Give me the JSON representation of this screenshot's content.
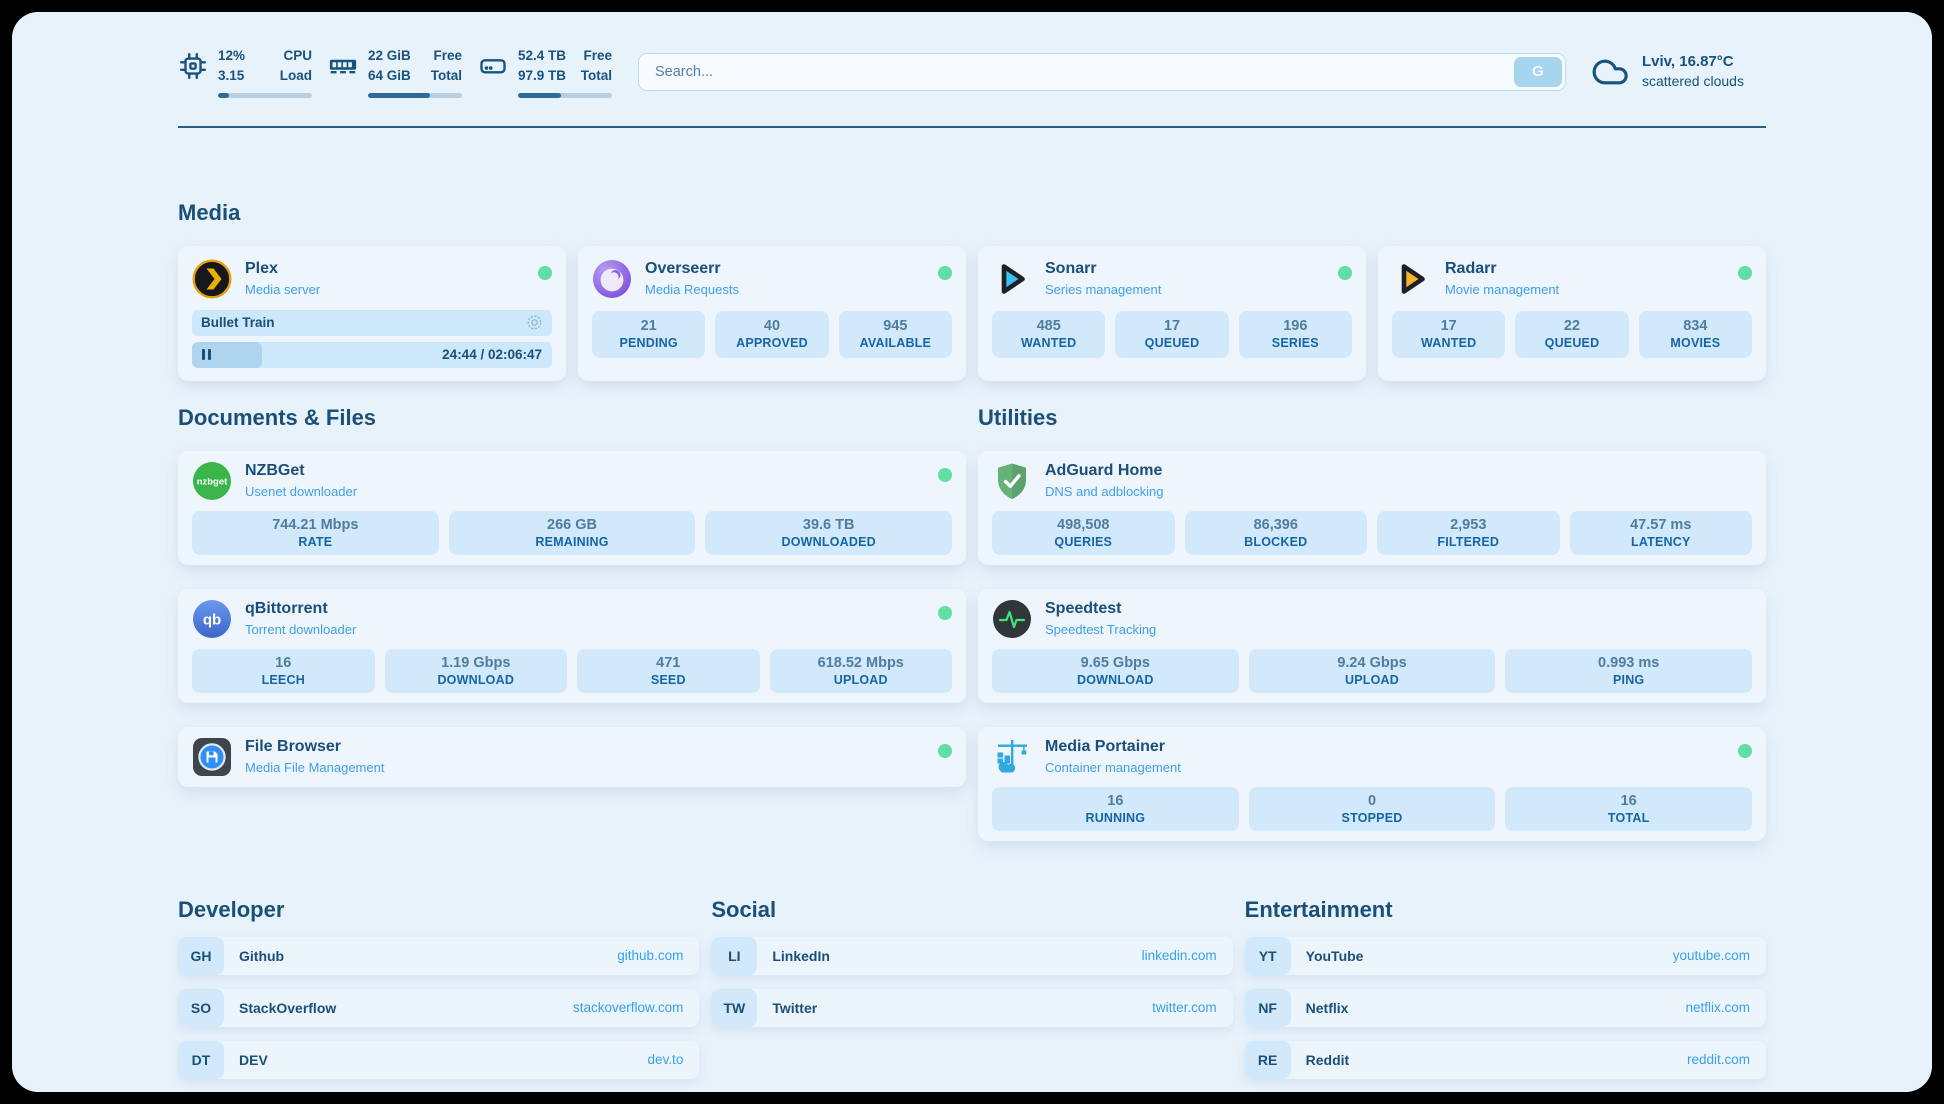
{
  "header": {
    "system_stats": [
      {
        "icon": "cpu-icon",
        "values": [
          "12%",
          "3.15"
        ],
        "labels": [
          "CPU",
          "Load"
        ],
        "progress_pct": 12
      },
      {
        "icon": "memory-icon",
        "values": [
          "22 GiB",
          "64 GiB"
        ],
        "labels": [
          "Free",
          "Total"
        ],
        "progress_pct": 66
      },
      {
        "icon": "storage-icon",
        "values": [
          "52.4 TB",
          "97.9 TB"
        ],
        "labels": [
          "Free",
          "Total"
        ],
        "progress_pct": 46
      }
    ],
    "search": {
      "placeholder": "Search...",
      "button_label": "G"
    },
    "weather": {
      "location_temperature": "Lviv, 16.87°C",
      "condition": "scattered clouds"
    }
  },
  "sections": {
    "media": {
      "title": "Media",
      "services": [
        {
          "name": "Plex",
          "description": "Media server",
          "status": "online",
          "icon": "plex-icon",
          "now_playing": {
            "title": "Bullet Train",
            "progress_pct": 19.5,
            "time": "24:44 / 02:06:47"
          }
        },
        {
          "name": "Overseerr",
          "description": "Media Requests",
          "status": "online",
          "icon": "overseerr-icon",
          "stats": [
            {
              "value": "21",
              "label": "PENDING"
            },
            {
              "value": "40",
              "label": "APPROVED"
            },
            {
              "value": "945",
              "label": "AVAILABLE"
            }
          ]
        },
        {
          "name": "Sonarr",
          "description": "Series management",
          "status": "online",
          "icon": "sonarr-icon",
          "stats": [
            {
              "value": "485",
              "label": "WANTED"
            },
            {
              "value": "17",
              "label": "QUEUED"
            },
            {
              "value": "196",
              "label": "SERIES"
            }
          ]
        },
        {
          "name": "Radarr",
          "description": "Movie management",
          "status": "online",
          "icon": "radarr-icon",
          "stats": [
            {
              "value": "17",
              "label": "WANTED"
            },
            {
              "value": "22",
              "label": "QUEUED"
            },
            {
              "value": "834",
              "label": "MOVIES"
            }
          ]
        }
      ]
    },
    "documents": {
      "title": "Documents & Files",
      "services": [
        {
          "name": "NZBGet",
          "description": "Usenet downloader",
          "status": "online",
          "icon": "nzbget-icon",
          "stats": [
            {
              "value": "744.21 Mbps",
              "label": "RATE"
            },
            {
              "value": "266 GB",
              "label": "REMAINING"
            },
            {
              "value": "39.6 TB",
              "label": "DOWNLOADED"
            }
          ]
        },
        {
          "name": "qBittorrent",
          "description": "Torrent downloader",
          "status": "online",
          "icon": "qbittorrent-icon",
          "stats": [
            {
              "value": "16",
              "label": "LEECH"
            },
            {
              "value": "1.19 Gbps",
              "label": "DOWNLOAD"
            },
            {
              "value": "471",
              "label": "SEED"
            },
            {
              "value": "618.52 Mbps",
              "label": "UPLOAD"
            }
          ]
        },
        {
          "name": "File Browser",
          "description": "Media File Management",
          "status": "online",
          "icon": "filebrowser-icon"
        }
      ]
    },
    "utilities": {
      "title": "Utilities",
      "services": [
        {
          "name": "AdGuard Home",
          "description": "DNS and adblocking",
          "icon": "adguard-icon",
          "stats": [
            {
              "value": "498,508",
              "label": "QUERIES"
            },
            {
              "value": "86,396",
              "label": "BLOCKED"
            },
            {
              "value": "2,953",
              "label": "FILTERED"
            },
            {
              "value": "47.57 ms",
              "label": "LATENCY"
            }
          ]
        },
        {
          "name": "Speedtest",
          "description": "Speedtest Tracking",
          "icon": "speedtest-icon",
          "stats": [
            {
              "value": "9.65 Gbps",
              "label": "DOWNLOAD"
            },
            {
              "value": "9.24 Gbps",
              "label": "UPLOAD"
            },
            {
              "value": "0.993 ms",
              "label": "PING"
            }
          ]
        },
        {
          "name": "Media Portainer",
          "description": "Container management",
          "status": "online",
          "icon": "portainer-icon",
          "stats": [
            {
              "value": "16",
              "label": "RUNNING"
            },
            {
              "value": "0",
              "label": "STOPPED"
            },
            {
              "value": "16",
              "label": "TOTAL"
            }
          ]
        }
      ]
    }
  },
  "link_sections": [
    {
      "title": "Developer",
      "links": [
        {
          "abbr": "GH",
          "name": "Github",
          "url": "github.com"
        },
        {
          "abbr": "SO",
          "name": "StackOverflow",
          "url": "stackoverflow.com"
        },
        {
          "abbr": "DT",
          "name": "DEV",
          "url": "dev.to"
        }
      ]
    },
    {
      "title": "Social",
      "links": [
        {
          "abbr": "LI",
          "name": "LinkedIn",
          "url": "linkedin.com"
        },
        {
          "abbr": "TW",
          "name": "Twitter",
          "url": "twitter.com"
        }
      ]
    },
    {
      "title": "Entertainment",
      "links": [
        {
          "abbr": "YT",
          "name": "YouTube",
          "url": "youtube.com"
        },
        {
          "abbr": "NF",
          "name": "Netflix",
          "url": "netflix.com"
        },
        {
          "abbr": "RE",
          "name": "Reddit",
          "url": "reddit.com"
        }
      ]
    }
  ],
  "colors": {
    "page_background": "#e8f2fb",
    "card_background": "#eef5fc",
    "stat_box_background": "#d2e9fb",
    "primary_text": "#1a4f78",
    "accent_blue": "#3fa0e8",
    "status_online_green": "#5fe0a2",
    "progress_fill": "#2e6b97"
  }
}
